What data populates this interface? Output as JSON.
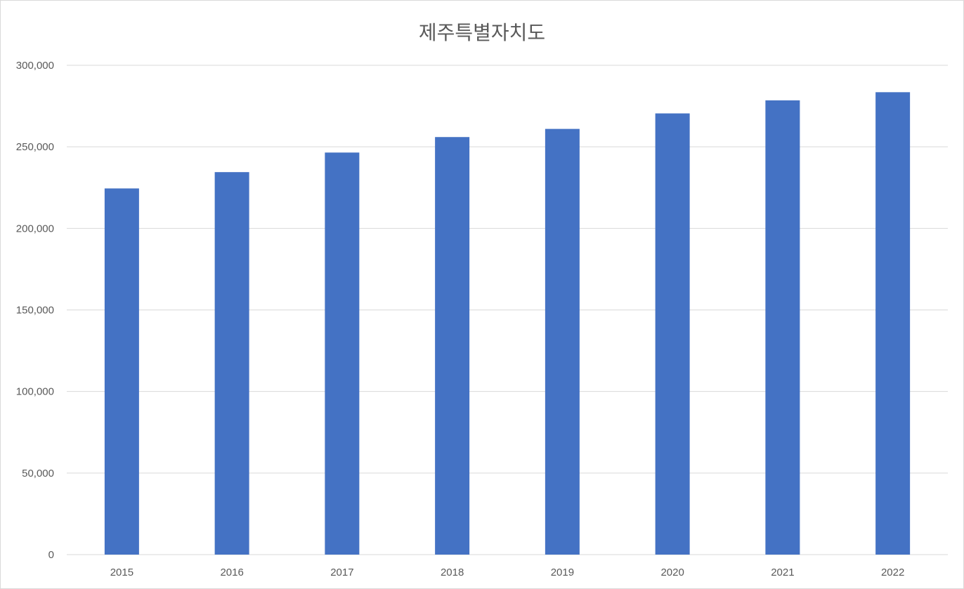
{
  "chart_data": {
    "type": "bar",
    "title": "제주특별자치도",
    "categories": [
      "2015",
      "2016",
      "2017",
      "2018",
      "2019",
      "2020",
      "2021",
      "2022"
    ],
    "values": [
      224500,
      234500,
      246500,
      256000,
      261000,
      270500,
      278500,
      283500
    ],
    "ylim": [
      0,
      300000
    ],
    "yticks": [
      0,
      50000,
      100000,
      150000,
      200000,
      250000,
      300000
    ],
    "ytick_labels": [
      "0",
      "50,000",
      "100,000",
      "150,000",
      "200,000",
      "250,000",
      "300,000"
    ],
    "grid": true,
    "legend": "none",
    "bar_color": "#4472c4",
    "grid_color": "#d9d9d9"
  }
}
